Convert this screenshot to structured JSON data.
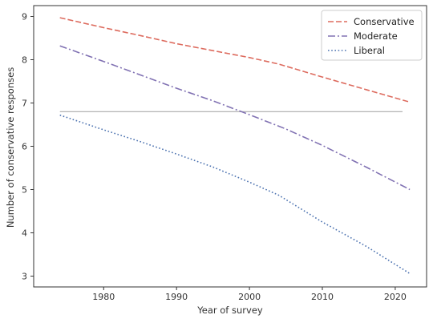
{
  "chart_data": {
    "type": "line",
    "title": "",
    "xlabel": "Year of survey",
    "ylabel": "Number of conservative responses",
    "xlim": [
      1970.4,
      2024.3
    ],
    "ylim": [
      2.75,
      9.25
    ],
    "xticks": [
      1980,
      1990,
      2000,
      2010,
      2020
    ],
    "yticks": [
      3,
      4,
      5,
      6,
      7,
      8,
      9
    ],
    "grid": false,
    "legend_position": "upper right",
    "series": [
      {
        "name": "Conservative",
        "color": "#dd6b5e",
        "linestyle": "dashed",
        "x": [
          1974,
          1980,
          1985,
          1990,
          1995,
          2000,
          2004,
          2010,
          2016,
          2022
        ],
        "y": [
          8.97,
          8.74,
          8.56,
          8.37,
          8.21,
          8.05,
          7.9,
          7.6,
          7.31,
          7.02
        ]
      },
      {
        "name": "Moderate",
        "color": "#8172b3",
        "linestyle": "dashdot",
        "x": [
          1974,
          1980,
          1985,
          1990,
          1995,
          2000,
          2005,
          2010,
          2016,
          2022
        ],
        "y": [
          8.32,
          7.96,
          7.65,
          7.34,
          7.05,
          6.73,
          6.4,
          6.02,
          5.52,
          5.0
        ]
      },
      {
        "name": "Liberal",
        "color": "#4c72b0",
        "linestyle": "dotted",
        "x": [
          1974,
          1980,
          1985,
          1990,
          1995,
          2000,
          2004,
          2010,
          2016,
          2022
        ],
        "y": [
          6.72,
          6.38,
          6.11,
          5.82,
          5.52,
          5.17,
          4.87,
          4.25,
          3.69,
          3.06
        ]
      }
    ],
    "reference_line": {
      "color": "#aaaaaa",
      "x": [
        1974,
        2021
      ],
      "y": 6.8
    }
  }
}
